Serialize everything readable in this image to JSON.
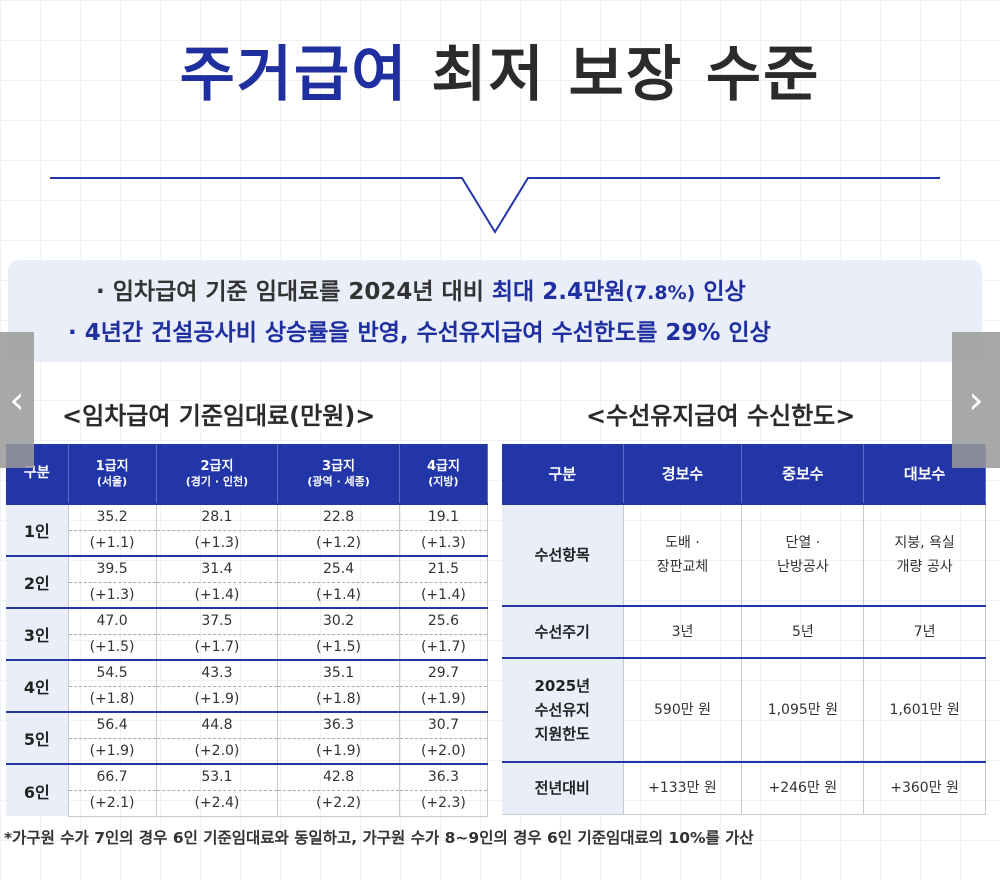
{
  "title": {
    "accent": "주거급여",
    "rest": "최저 보장 수준"
  },
  "summary": {
    "line1_prefix": "· 임차급여 기준 임대료를 2024년 대비 ",
    "line1_highlight": "최대 2.4만원",
    "line1_small": "(7.8%)",
    "line1_suffix": " 인상",
    "line2": "· 4년간 건설공사비 상승률을 반영, 수선유지급여 수선한도를 29% 인상"
  },
  "rent_table": {
    "title": "<임차급여 기준임대료(만원)>",
    "headers": [
      {
        "l1": "구분",
        "l2": ""
      },
      {
        "l1": "1급지",
        "l2": "(서울)"
      },
      {
        "l1": "2급지",
        "l2": "(경기 · 인천)"
      },
      {
        "l1": "3급지",
        "l2": "(광역 · 세종)"
      },
      {
        "l1": "4급지",
        "l2": "(지방)"
      }
    ],
    "rows": [
      {
        "label": "1인",
        "values": [
          "35.2",
          "28.1",
          "22.8",
          "19.1"
        ],
        "increases": [
          "(+1.1)",
          "(+1.3)",
          "(+1.2)",
          "(+1.3)"
        ]
      },
      {
        "label": "2인",
        "values": [
          "39.5",
          "31.4",
          "25.4",
          "21.5"
        ],
        "increases": [
          "(+1.3)",
          "(+1.4)",
          "(+1.4)",
          "(+1.4)"
        ]
      },
      {
        "label": "3인",
        "values": [
          "47.0",
          "37.5",
          "30.2",
          "25.6"
        ],
        "increases": [
          "(+1.5)",
          "(+1.7)",
          "(+1.5)",
          "(+1.7)"
        ]
      },
      {
        "label": "4인",
        "values": [
          "54.5",
          "43.3",
          "35.1",
          "29.7"
        ],
        "increases": [
          "(+1.8)",
          "(+1.9)",
          "(+1.8)",
          "(+1.9)"
        ]
      },
      {
        "label": "5인",
        "values": [
          "56.4",
          "44.8",
          "36.3",
          "30.7"
        ],
        "increases": [
          "(+1.9)",
          "(+2.0)",
          "(+1.9)",
          "(+2.0)"
        ]
      },
      {
        "label": "6인",
        "values": [
          "66.7",
          "53.1",
          "42.8",
          "36.3"
        ],
        "increases": [
          "(+2.1)",
          "(+2.4)",
          "(+2.2)",
          "(+2.3)"
        ]
      }
    ]
  },
  "repair_table": {
    "title": "<수선유지급여 수신한도>",
    "headers": [
      "구분",
      "경보수",
      "중보수",
      "대보수"
    ],
    "rows": [
      {
        "label": "수선항목",
        "cells": [
          "도배 ·\n장판교체",
          "단열 ·\n난방공사",
          "지붕, 욕실\n개량 공사"
        ]
      },
      {
        "label": "수선주기",
        "cells": [
          "3년",
          "5년",
          "7년"
        ]
      },
      {
        "label": "2025년\n수선유지\n지원한도",
        "cells": [
          "590만 원",
          "1,095만 원",
          "1,601만 원"
        ]
      },
      {
        "label": "전년대비",
        "cells": [
          "+133만 원",
          "+246만 원",
          "+360만 원"
        ]
      }
    ]
  },
  "footnote": "*가구원 수가 7인의 경우 6인 기준임대료와 동일하고, 가구원 수가 8~9인의 경우 6인 기준임대료의 10%를 가산",
  "nav": {
    "prev_icon": "‹",
    "next_icon": "›"
  },
  "colors": {
    "accent": "#1f2f9f",
    "header": "#2236a8",
    "label_bg": "#e9eef9"
  }
}
